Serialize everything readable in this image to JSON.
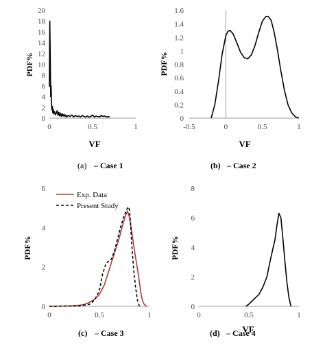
{
  "chart_data": [
    {
      "type": "line",
      "panel": "Case 1",
      "caption": {
        "prefix": "(a)",
        "text": "– Case 1"
      },
      "xlabel": "VF",
      "ylabel": "PDF%",
      "xlim": [
        0,
        1
      ],
      "ylim": [
        0,
        20
      ],
      "xticks": [
        "0",
        "0.5",
        "1"
      ],
      "yticks": [
        "0",
        "2",
        "4",
        "6",
        "8",
        "10",
        "12",
        "14",
        "16",
        "18",
        "20"
      ],
      "series": [
        {
          "color": "#000000",
          "style": "solid",
          "x": [
            0.0,
            0.005,
            0.01,
            0.015,
            0.02,
            0.025,
            0.03,
            0.035,
            0.04,
            0.045,
            0.05,
            0.06,
            0.07,
            0.08,
            0.09,
            0.1,
            0.11,
            0.12,
            0.13,
            0.14,
            0.15,
            0.16,
            0.17,
            0.18,
            0.19,
            0.2,
            0.22,
            0.24,
            0.26,
            0.28,
            0.3,
            0.32,
            0.34,
            0.36,
            0.38,
            0.4,
            0.42,
            0.44,
            0.46,
            0.48,
            0.5,
            0.52,
            0.54,
            0.56,
            0.58,
            0.6,
            0.62,
            0.64,
            0.66,
            0.68,
            0.7
          ],
          "y": [
            5.8,
            18.0,
            12.0,
            4.0,
            6.0,
            2.5,
            1.5,
            2.2,
            1.0,
            1.6,
            0.8,
            1.2,
            0.6,
            0.9,
            1.4,
            0.5,
            1.1,
            0.4,
            0.9,
            0.3,
            0.8,
            0.4,
            0.7,
            0.3,
            0.6,
            0.2,
            0.5,
            0.3,
            0.6,
            0.2,
            0.5,
            0.3,
            0.4,
            0.2,
            0.5,
            0.3,
            0.2,
            0.4,
            0.2,
            0.3,
            0.6,
            0.2,
            0.4,
            0.3,
            0.2,
            0.5,
            0.3,
            0.4,
            0.2,
            0.3,
            0.2
          ]
        }
      ]
    },
    {
      "type": "line",
      "panel": "Case 2",
      "caption": {
        "prefix": "(b)",
        "text": "– Case 2"
      },
      "xlabel": "VF",
      "ylabel": "PDF%",
      "xlim": [
        -0.5,
        1
      ],
      "ylim": [
        0,
        1.6
      ],
      "xticks": [
        "-0.5",
        "0",
        "0.5",
        "1"
      ],
      "yticks": [
        "0",
        "0.2",
        "0.4",
        "0.6",
        "0.8",
        "1",
        "1.2",
        "1.4",
        "1.6"
      ],
      "series": [
        {
          "color": "#000000",
          "style": "solid",
          "x": [
            -0.2,
            -0.15,
            -0.1,
            -0.05,
            0.0,
            0.03,
            0.06,
            0.1,
            0.15,
            0.2,
            0.25,
            0.3,
            0.35,
            0.4,
            0.45,
            0.5,
            0.55,
            0.58,
            0.62,
            0.66,
            0.7,
            0.75,
            0.8,
            0.85,
            0.9,
            0.95,
            1.0
          ],
          "y": [
            0.0,
            0.2,
            0.55,
            0.95,
            1.22,
            1.29,
            1.3,
            1.25,
            1.12,
            0.98,
            0.9,
            0.88,
            0.94,
            1.08,
            1.27,
            1.44,
            1.51,
            1.51,
            1.45,
            1.28,
            1.05,
            0.72,
            0.42,
            0.2,
            0.08,
            0.02,
            0.0
          ]
        }
      ]
    },
    {
      "type": "line",
      "panel": "Case 3",
      "caption": {
        "prefix": "(c)",
        "text": "– Case 3"
      },
      "xlabel": "",
      "ylabel": "PDF%",
      "xlim": [
        0,
        1
      ],
      "ylim": [
        0,
        6
      ],
      "xticks": [
        "0",
        "0.5",
        "1"
      ],
      "yticks": [
        "0",
        "2",
        "4",
        "6"
      ],
      "legend_position": "top-left",
      "series": [
        {
          "name": "Exp. Data",
          "color": "#b03a3a",
          "style": "solid",
          "x": [
            0.0,
            0.2,
            0.3,
            0.35,
            0.4,
            0.45,
            0.5,
            0.55,
            0.6,
            0.65,
            0.7,
            0.73,
            0.76,
            0.78,
            0.8,
            0.82,
            0.84,
            0.86,
            0.88,
            0.9,
            0.92,
            0.94,
            0.97
          ],
          "y": [
            0.0,
            0.02,
            0.05,
            0.1,
            0.2,
            0.35,
            0.6,
            1.1,
            1.9,
            2.7,
            3.5,
            4.1,
            4.6,
            4.85,
            4.5,
            3.9,
            3.2,
            2.5,
            1.9,
            1.2,
            0.5,
            0.15,
            0.0
          ]
        },
        {
          "name": "Present Study",
          "color": "#000000",
          "style": "dashed",
          "x": [
            0.0,
            0.3,
            0.4,
            0.45,
            0.5,
            0.53,
            0.56,
            0.58,
            0.6,
            0.62,
            0.65,
            0.68,
            0.71,
            0.74,
            0.77,
            0.79,
            0.8,
            0.81,
            0.82,
            0.84,
            0.86,
            0.88,
            0.9
          ],
          "y": [
            0.0,
            0.02,
            0.1,
            0.3,
            0.8,
            1.6,
            2.1,
            2.25,
            2.3,
            2.4,
            2.8,
            3.4,
            4.0,
            4.5,
            4.9,
            5.05,
            4.9,
            4.3,
            3.4,
            2.0,
            1.0,
            0.3,
            0.0
          ]
        }
      ]
    },
    {
      "type": "line",
      "panel": "Case 4",
      "caption": {
        "prefix": "(d)",
        "text": "– Case 4"
      },
      "xlabel": "VF",
      "ylabel": "PDF%",
      "xlim": [
        0,
        1
      ],
      "ylim": [
        0,
        8
      ],
      "xticks": [
        "0",
        "0.5",
        "1"
      ],
      "yticks": [
        "0",
        "2",
        "4",
        "6",
        "8"
      ],
      "series": [
        {
          "color": "#000000",
          "style": "solid",
          "x": [
            0.47,
            0.5,
            0.53,
            0.56,
            0.6,
            0.64,
            0.68,
            0.71,
            0.74,
            0.76,
            0.78,
            0.8,
            0.82,
            0.84,
            0.86,
            0.88,
            0.9,
            0.92
          ],
          "y": [
            0.0,
            0.15,
            0.35,
            0.55,
            0.8,
            1.3,
            2.0,
            3.0,
            3.9,
            4.5,
            5.5,
            6.3,
            6.0,
            4.6,
            3.0,
            1.6,
            0.6,
            0.0
          ]
        }
      ]
    }
  ]
}
